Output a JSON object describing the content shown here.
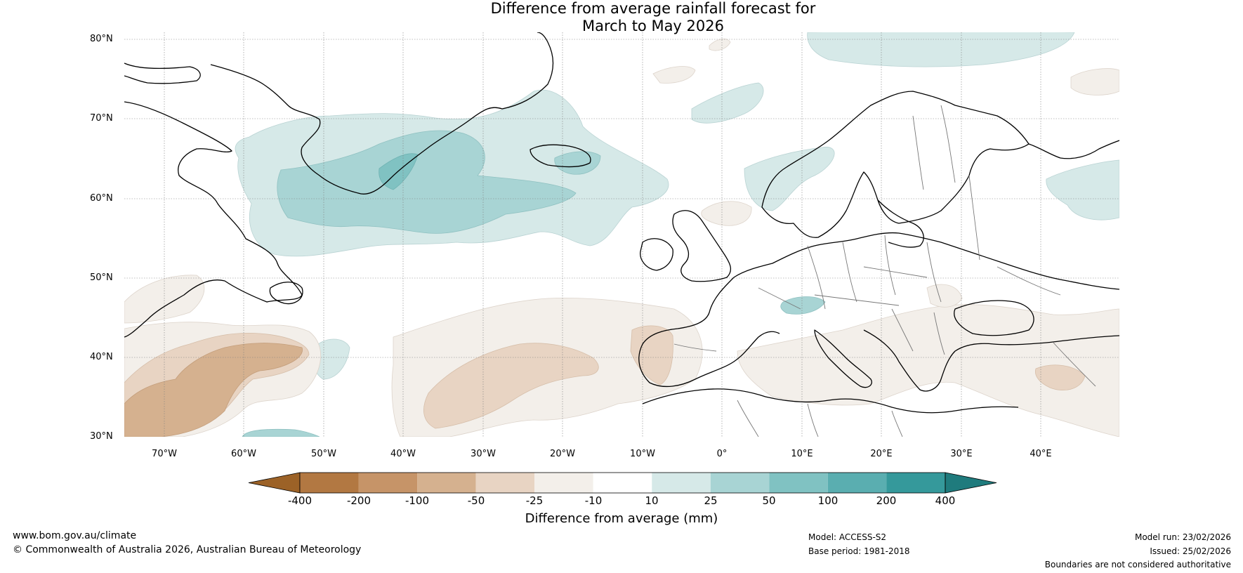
{
  "title": {
    "line1": "Difference from average rainfall forecast for",
    "line2": "March to May 2026"
  },
  "map": {
    "region": "North Atlantic and Europe",
    "lat_labels": [
      "80°N",
      "70°N",
      "60°N",
      "50°N",
      "40°N",
      "30°N"
    ],
    "lon_labels": [
      "70°W",
      "60°W",
      "50°W",
      "40°W",
      "30°W",
      "20°W",
      "10°W",
      "0°",
      "10°E",
      "20°E",
      "30°E",
      "40°E"
    ]
  },
  "colorbar": {
    "labels": [
      "-400",
      "-200",
      "-100",
      "-50",
      "-25",
      "-10",
      "10",
      "25",
      "50",
      "100",
      "200",
      "400"
    ],
    "colors": [
      "#9c6227",
      "#b27842",
      "#c69468",
      "#d5b18f",
      "#e8d4c3",
      "#f3efea",
      "#ffffff",
      "#d6e9e8",
      "#a8d4d4",
      "#80c2c2",
      "#5aaeb0",
      "#35999b",
      "#1f7b7d"
    ],
    "title": "Difference from average (mm)"
  },
  "footer": {
    "website": "www.bom.gov.au/climate",
    "copyright": "© Commonwealth of Australia 2026, Australian Bureau of Meteorology",
    "model": "Model: ACCESS-S2",
    "base_period": "Base period: 1981-2018",
    "model_run": "Model run: 23/02/2026",
    "issued": "Issued: 25/02/2026",
    "disclaimer": "Boundaries are not considered authoritative"
  }
}
